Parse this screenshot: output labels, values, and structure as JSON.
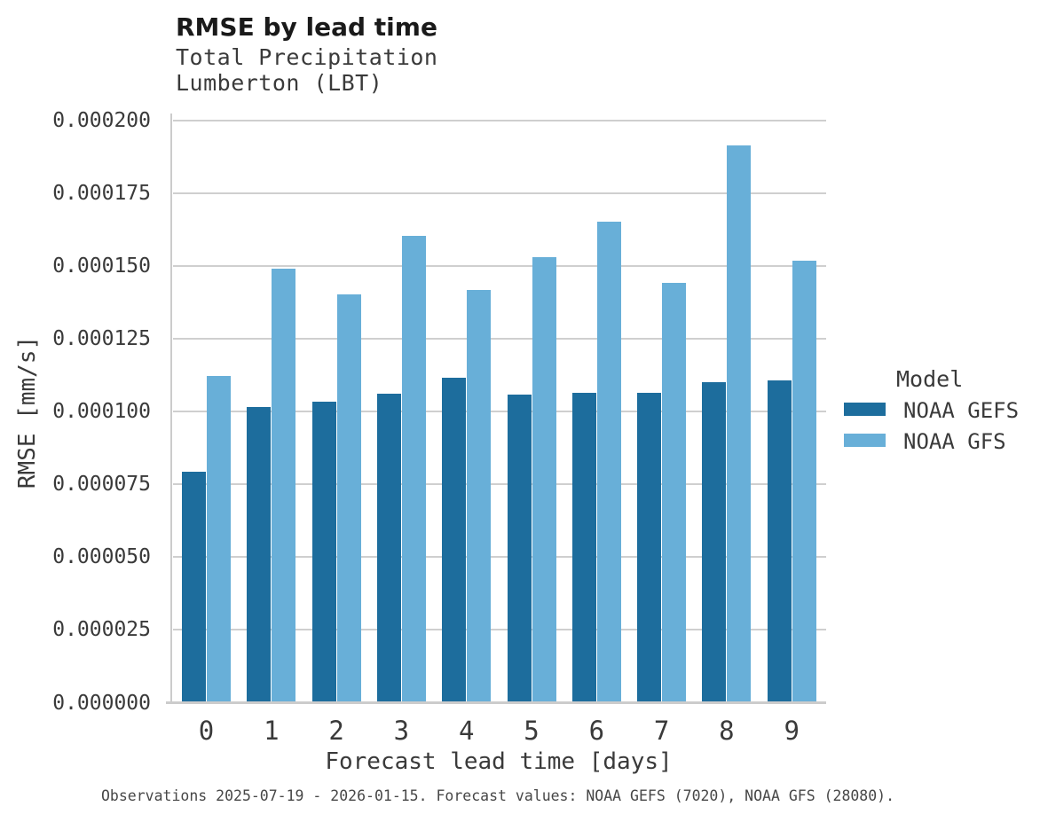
{
  "header": {
    "title": "RMSE by lead time",
    "subtitle_line1": "Total Precipitation",
    "subtitle_line2": "Lumberton (LBT)"
  },
  "colors": {
    "gefs": "#1D6D9D",
    "gfs": "#68AFD8",
    "grid": "#CFCFCF",
    "spine": "#CCCCCC",
    "text": "#3A3A3A"
  },
  "legend": {
    "title": "Model",
    "items": [
      {
        "label": "NOAA GEFS",
        "color": "#1D6D9D"
      },
      {
        "label": "NOAA GFS",
        "color": "#68AFD8"
      }
    ]
  },
  "chart_data": {
    "type": "bar",
    "title": "RMSE by lead time",
    "subtitle": "Total Precipitation / Lumberton (LBT)",
    "xlabel": "Forecast lead time [days]",
    "ylabel": "RMSE [mm/s]",
    "categories": [
      "0",
      "1",
      "2",
      "3",
      "4",
      "5",
      "6",
      "7",
      "8",
      "9"
    ],
    "series": [
      {
        "name": "NOAA GEFS",
        "color": "#1D6D9D",
        "values": [
          7.95e-05,
          0.0001017,
          0.0001034,
          0.0001063,
          0.0001118,
          0.0001058,
          0.0001066,
          0.0001066,
          0.00011,
          0.0001108
        ]
      },
      {
        "name": "NOAA GFS",
        "color": "#68AFD8",
        "values": [
          0.0001122,
          0.000149,
          0.0001403,
          0.0001604,
          0.0001418,
          0.0001532,
          0.0001652,
          0.0001443,
          0.0001916,
          0.0001518
        ]
      }
    ],
    "ylim": [
      0,
      0.0002
    ],
    "yticks": {
      "values": [
        0,
        2.5e-05,
        5e-05,
        7.5e-05,
        0.0001,
        0.000125,
        0.00015,
        0.000175,
        0.0002
      ],
      "labels": [
        "0.000000",
        "0.000025",
        "0.000050",
        "0.000075",
        "0.000100",
        "0.000125",
        "0.000150",
        "0.000175",
        "0.000200"
      ]
    },
    "grid": true,
    "legend_position": "right"
  },
  "footer": "Observations 2025-07-19 - 2026-01-15. Forecast values: NOAA GEFS (7020), NOAA GFS (28080)."
}
